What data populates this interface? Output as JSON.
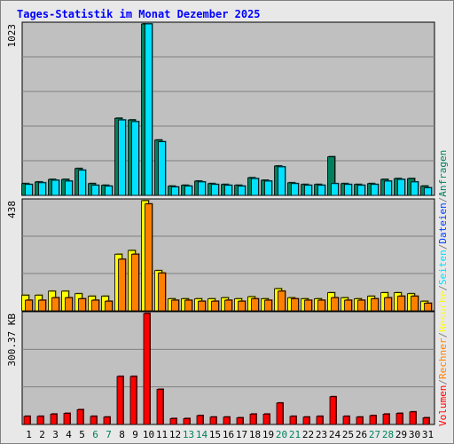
{
  "title": "Tages-Statistik im Monat Dezember 2025",
  "colors": {
    "background": "#e8e8e8",
    "plot_bg": "#c0c0c0",
    "title": "#0000ff",
    "grid": "#808080",
    "anfragen": "#00805c",
    "dateien": "#0040ff",
    "seiten": "#00e0ff",
    "besuche": "#ffff00",
    "rechner": "#ff8000",
    "volumen": "#ff0000",
    "weekend_label": "#00805c"
  },
  "chart_data": [
    {
      "type": "bar",
      "panel": "hits",
      "ylabel": "1023",
      "ylim": [
        0,
        1023
      ],
      "grid": true,
      "categories": [
        "1",
        "2",
        "3",
        "4",
        "5",
        "6",
        "7",
        "8",
        "9",
        "10",
        "11",
        "12",
        "13",
        "14",
        "15",
        "16",
        "17",
        "18",
        "19",
        "20",
        "21",
        "22",
        "23",
        "24",
        "25",
        "26",
        "27",
        "28",
        "29",
        "30",
        "31"
      ],
      "series": [
        {
          "name": "Anfragen",
          "color_key": "anfragen",
          "values": [
            70,
            80,
            95,
            95,
            160,
            70,
            60,
            460,
            450,
            1023,
            330,
            55,
            60,
            85,
            70,
            65,
            60,
            105,
            90,
            175,
            75,
            65,
            65,
            230,
            70,
            65,
            70,
            95,
            100,
            100,
            55
          ]
        },
        {
          "name": "Seiten",
          "color_key": "seiten",
          "values": [
            65,
            75,
            90,
            85,
            150,
            60,
            55,
            450,
            440,
            1023,
            320,
            50,
            55,
            80,
            65,
            60,
            55,
            100,
            85,
            170,
            70,
            60,
            60,
            70,
            65,
            60,
            65,
            85,
            95,
            80,
            45
          ]
        }
      ]
    },
    {
      "type": "bar",
      "panel": "visits",
      "ylabel": "438",
      "ylim": [
        0,
        438
      ],
      "grid": true,
      "categories": [
        "1",
        "2",
        "3",
        "4",
        "5",
        "6",
        "7",
        "8",
        "9",
        "10",
        "11",
        "12",
        "13",
        "14",
        "15",
        "16",
        "17",
        "18",
        "19",
        "20",
        "21",
        "22",
        "23",
        "24",
        "25",
        "26",
        "27",
        "28",
        "29",
        "30",
        "31"
      ],
      "series": [
        {
          "name": "Besuche",
          "color_key": "besuche",
          "values": [
            62,
            62,
            78,
            78,
            68,
            58,
            58,
            225,
            240,
            438,
            160,
            48,
            48,
            48,
            48,
            52,
            48,
            56,
            48,
            88,
            52,
            48,
            48,
            72,
            52,
            48,
            58,
            72,
            72,
            68,
            38
          ]
        },
        {
          "name": "Rechner",
          "color_key": "rechner",
          "values": [
            42,
            42,
            52,
            52,
            48,
            42,
            38,
            205,
            225,
            425,
            150,
            42,
            42,
            38,
            38,
            42,
            38,
            48,
            42,
            78,
            48,
            42,
            42,
            52,
            42,
            42,
            48,
            52,
            58,
            58,
            30
          ]
        }
      ]
    },
    {
      "type": "bar",
      "panel": "volume",
      "ylabel": "300.37 KB",
      "ylim": [
        0,
        300.37
      ],
      "grid": true,
      "categories": [
        "1",
        "2",
        "3",
        "4",
        "5",
        "6",
        "7",
        "8",
        "9",
        "10",
        "11",
        "12",
        "13",
        "14",
        "15",
        "16",
        "17",
        "18",
        "19",
        "20",
        "21",
        "22",
        "23",
        "24",
        "25",
        "26",
        "27",
        "28",
        "29",
        "30",
        "31"
      ],
      "series": [
        {
          "name": "Volumen",
          "color_key": "volumen",
          "values": [
            22,
            22,
            28,
            30,
            40,
            22,
            20,
            130,
            130,
            300.37,
            95,
            16,
            16,
            24,
            20,
            20,
            18,
            28,
            28,
            58,
            22,
            20,
            22,
            75,
            22,
            20,
            24,
            28,
            30,
            34,
            18
          ]
        }
      ]
    }
  ],
  "x_labels": [
    "1",
    "2",
    "3",
    "4",
    "5",
    "6",
    "7",
    "8",
    "9",
    "10",
    "11",
    "12",
    "13",
    "14",
    "15",
    "16",
    "17",
    "18",
    "19",
    "20",
    "21",
    "22",
    "23",
    "24",
    "25",
    "26",
    "27",
    "28",
    "29",
    "30",
    "31"
  ],
  "weekend_days": [
    "6",
    "7",
    "13",
    "14",
    "20",
    "21",
    "27",
    "28"
  ],
  "legend_right_top": [
    {
      "text": "Anfragen",
      "color_key": "anfragen"
    },
    {
      "text": "/",
      "color_key": "grid"
    },
    {
      "text": "Dateien",
      "color_key": "dateien"
    },
    {
      "text": "/",
      "color_key": "grid"
    },
    {
      "text": "Seiten",
      "color_key": "seiten"
    },
    {
      "text": "/",
      "color_key": "grid"
    },
    {
      "text": "Besuche",
      "color_key": "besuche"
    },
    {
      "text": "/",
      "color_key": "grid"
    },
    {
      "text": "Rechner",
      "color_key": "rechner"
    },
    {
      "text": "/",
      "color_key": "grid"
    },
    {
      "text": "Volumen",
      "color_key": "volumen"
    }
  ]
}
